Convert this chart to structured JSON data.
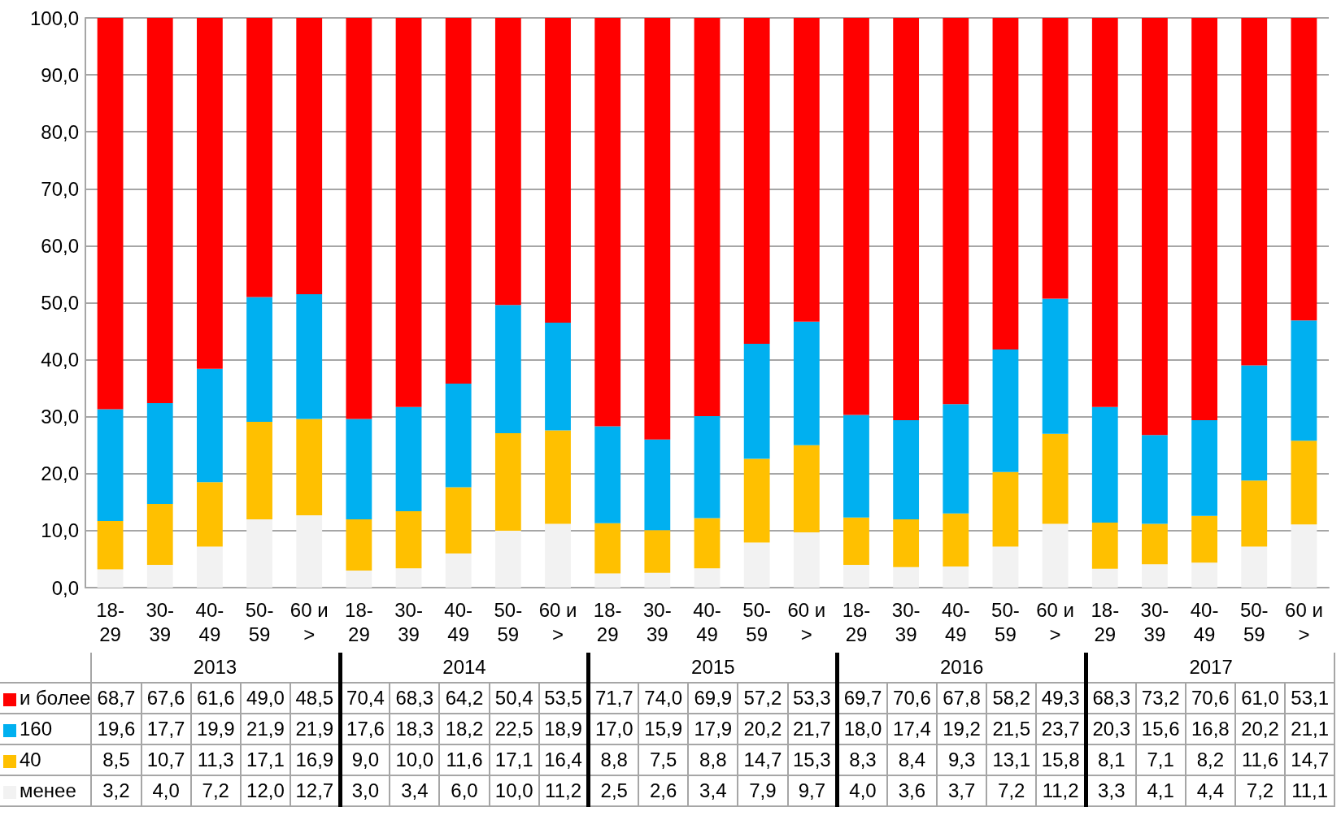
{
  "chart_data": {
    "type": "bar",
    "stacked": true,
    "categories": [
      "18-29",
      "30-39",
      "40-49",
      "50-59",
      "60 и >",
      "18-29",
      "30-39",
      "40-49",
      "50-59",
      "60 и >",
      "18-29",
      "30-39",
      "40-49",
      "50-59",
      "60 и >",
      "18-29",
      "30-39",
      "40-49",
      "50-59",
      "60 и >",
      "18-29",
      "30-39",
      "40-49",
      "50-59",
      "60 и >"
    ],
    "annotations": [
      "2013",
      "2014",
      "2015",
      "2016",
      "2017"
    ],
    "series": [
      {
        "name": "менее",
        "color": "#f2f2f2",
        "values": [
          3.2,
          4.0,
          7.2,
          12.0,
          12.7,
          3.0,
          3.4,
          6.0,
          10.0,
          11.2,
          2.5,
          2.6,
          3.4,
          7.9,
          9.7,
          4.0,
          3.6,
          3.7,
          7.2,
          11.2,
          3.3,
          4.1,
          4.4,
          7.2,
          11.1
        ],
        "value_labels": [
          "3,2",
          "4,0",
          "7,2",
          "12,0",
          "12,7",
          "3,0",
          "3,4",
          "6,0",
          "10,0",
          "11,2",
          "2,5",
          "2,6",
          "3,4",
          "7,9",
          "9,7",
          "4,0",
          "3,6",
          "3,7",
          "7,2",
          "11,2",
          "3,3",
          "4,1",
          "4,4",
          "7,2",
          "11,1"
        ]
      },
      {
        "name": "40",
        "color": "#ffc000",
        "values": [
          8.5,
          10.7,
          11.3,
          17.1,
          16.9,
          9.0,
          10.0,
          11.6,
          17.1,
          16.4,
          8.8,
          7.5,
          8.8,
          14.7,
          15.3,
          8.3,
          8.4,
          9.3,
          13.1,
          15.8,
          8.1,
          7.1,
          8.2,
          11.6,
          14.7
        ],
        "value_labels": [
          "8,5",
          "10,7",
          "11,3",
          "17,1",
          "16,9",
          "9,0",
          "10,0",
          "11,6",
          "17,1",
          "16,4",
          "8,8",
          "7,5",
          "8,8",
          "14,7",
          "15,3",
          "8,3",
          "8,4",
          "9,3",
          "13,1",
          "15,8",
          "8,1",
          "7,1",
          "8,2",
          "11,6",
          "14,7"
        ]
      },
      {
        "name": "160",
        "color": "#00b0f0",
        "values": [
          19.6,
          17.7,
          19.9,
          21.9,
          21.9,
          17.6,
          18.3,
          18.2,
          22.5,
          18.9,
          17.0,
          15.9,
          17.9,
          20.2,
          21.7,
          18.0,
          17.4,
          19.2,
          21.5,
          23.7,
          20.3,
          15.6,
          16.8,
          20.2,
          21.1
        ],
        "value_labels": [
          "19,6",
          "17,7",
          "19,9",
          "21,9",
          "21,9",
          "17,6",
          "18,3",
          "18,2",
          "22,5",
          "18,9",
          "17,0",
          "15,9",
          "17,9",
          "20,2",
          "21,7",
          "18,0",
          "17,4",
          "19,2",
          "21,5",
          "23,7",
          "20,3",
          "15,6",
          "16,8",
          "20,2",
          "21,1"
        ]
      },
      {
        "name": "и более",
        "color": "#ff0000",
        "values": [
          68.7,
          67.6,
          61.6,
          49.0,
          48.5,
          70.4,
          68.3,
          64.2,
          50.4,
          53.5,
          71.7,
          74.0,
          69.9,
          57.2,
          53.3,
          69.7,
          70.6,
          67.8,
          58.2,
          49.3,
          68.3,
          73.2,
          70.6,
          61.0,
          53.1
        ],
        "value_labels": [
          "68,7",
          "67,6",
          "61,6",
          "49,0",
          "48,5",
          "70,4",
          "68,3",
          "64,2",
          "50,4",
          "53,5",
          "71,7",
          "74,0",
          "69,9",
          "57,2",
          "53,3",
          "69,7",
          "70,6",
          "67,8",
          "58,2",
          "49,3",
          "68,3",
          "73,2",
          "70,6",
          "61,0",
          "53,1"
        ]
      }
    ],
    "ylim": [
      0,
      100
    ],
    "yticks": [
      {
        "value": 0,
        "label": "0,0"
      },
      {
        "value": 10,
        "label": "10,0"
      },
      {
        "value": 20,
        "label": "20,0"
      },
      {
        "value": 30,
        "label": "30,0"
      },
      {
        "value": 40,
        "label": "40,0"
      },
      {
        "value": 50,
        "label": "50,0"
      },
      {
        "value": 60,
        "label": "60,0"
      },
      {
        "value": 70,
        "label": "70,0"
      },
      {
        "value": 80,
        "label": "80,0"
      },
      {
        "value": 90,
        "label": "90,0"
      },
      {
        "value": 100,
        "label": "100,0"
      }
    ],
    "grid": "y",
    "legend": "bottom"
  }
}
